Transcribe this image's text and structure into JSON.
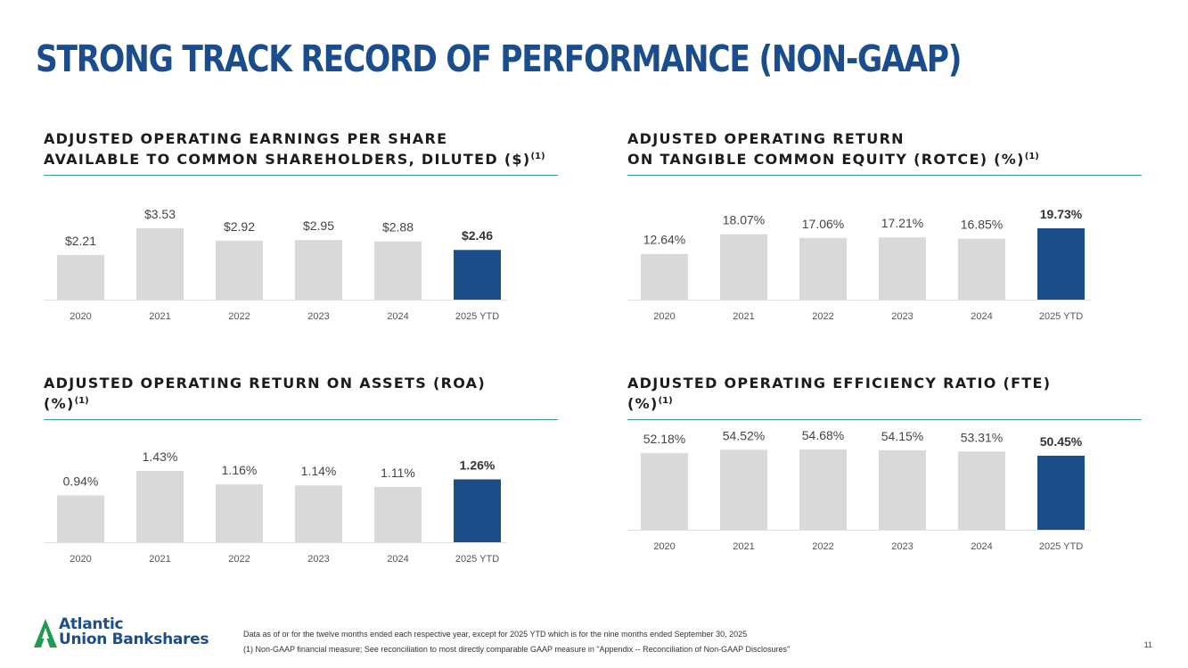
{
  "page": {
    "title": "STRONG TRACK RECORD OF PERFORMANCE (NON-GAAP)",
    "page_number": "11"
  },
  "colors": {
    "title": "#1b4d8c",
    "bar_highlight": "#1b4d8c",
    "bar_default": "#d9d9d9",
    "rule": "#36a57f"
  },
  "logo": {
    "line1": "Atlantic",
    "line2": "Union Bankshares"
  },
  "footnotes": [
    "Data as of or for the twelve months ended each respective year, except for 2025 YTD which is for the nine months ended September 30, 2025",
    "(1) Non-GAAP financial measure; See reconciliation to most directly comparable GAAP measure in \"Appendix -- Reconciliation of Non-GAAP Disclosures\""
  ],
  "chart_data": [
    {
      "type": "bar",
      "title_lines": [
        "ADJUSTED OPERATING EARNINGS PER SHARE",
        "AVAILABLE TO COMMON SHAREHOLDERS, DILUTED ($)"
      ],
      "footnote_marker": "(1)",
      "categories": [
        "2020",
        "2021",
        "2022",
        "2023",
        "2024",
        "2025 YTD"
      ],
      "values": [
        2.21,
        3.53,
        2.92,
        2.95,
        2.88,
        2.46
      ],
      "value_labels": [
        "$2.21",
        "$3.53",
        "$2.92",
        "$2.95",
        "$2.88",
        "$2.46"
      ],
      "ylim": [
        0,
        3.53
      ],
      "highlight_index": 5
    },
    {
      "type": "bar",
      "title_lines": [
        "ADJUSTED OPERATING RETURN",
        "ON TANGIBLE COMMON EQUITY (ROTCE) (%)"
      ],
      "footnote_marker": "(1)",
      "categories": [
        "2020",
        "2021",
        "2022",
        "2023",
        "2024",
        "2025 YTD"
      ],
      "values": [
        12.64,
        18.07,
        17.06,
        17.21,
        16.85,
        19.73
      ],
      "value_labels": [
        "12.64%",
        "18.07%",
        "17.06%",
        "17.21%",
        "16.85%",
        "19.73%"
      ],
      "ylim": [
        0,
        19.73
      ],
      "highlight_index": 5
    },
    {
      "type": "bar",
      "title_lines": [
        "ADJUSTED OPERATING RETURN ON ASSETS (ROA)",
        "(%)"
      ],
      "footnote_marker": "(1)",
      "categories": [
        "2020",
        "2021",
        "2022",
        "2023",
        "2024",
        "2025 YTD"
      ],
      "values": [
        0.94,
        1.43,
        1.16,
        1.14,
        1.11,
        1.26
      ],
      "value_labels": [
        "0.94%",
        "1.43%",
        "1.16%",
        "1.14%",
        "1.11%",
        "1.26%"
      ],
      "ylim": [
        0,
        1.43
      ],
      "highlight_index": 5
    },
    {
      "type": "bar",
      "title_lines": [
        "ADJUSTED OPERATING EFFICIENCY RATIO (FTE)",
        "(%)"
      ],
      "footnote_marker": "(1)",
      "categories": [
        "2020",
        "2021",
        "2022",
        "2023",
        "2024",
        "2025 YTD"
      ],
      "values": [
        52.18,
        54.52,
        54.68,
        54.15,
        53.31,
        50.45
      ],
      "value_labels": [
        "52.18%",
        "54.52%",
        "54.68%",
        "54.15%",
        "53.31%",
        "50.45%"
      ],
      "ylim": [
        0,
        54.68
      ],
      "highlight_index": 5
    }
  ]
}
